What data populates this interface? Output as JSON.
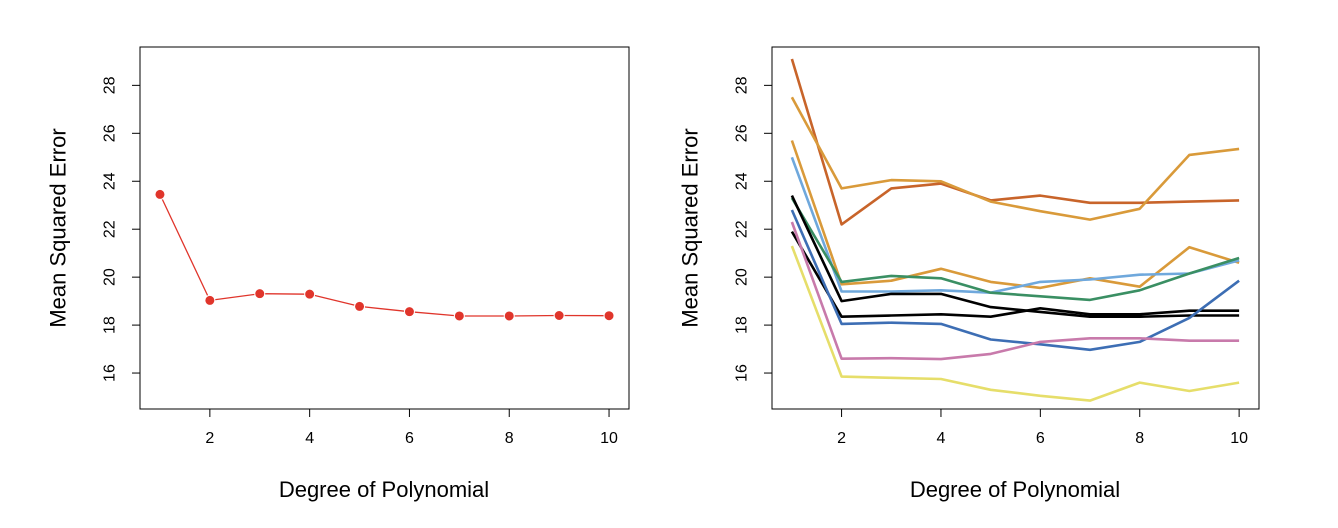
{
  "chart_data": [
    {
      "type": "line",
      "title": "",
      "xlabel": "Degree of Polynomial",
      "ylabel": "Mean Squared Error",
      "xlim": [
        0.6,
        10.4
      ],
      "ylim": [
        14.5,
        29.6
      ],
      "xticks": [
        2,
        4,
        6,
        8,
        10
      ],
      "yticks": [
        16,
        18,
        20,
        22,
        24,
        26,
        28
      ],
      "grid": false,
      "markers": true,
      "series": [
        {
          "color": "#e0352b",
          "x": [
            1,
            2,
            3,
            4,
            5,
            6,
            7,
            8,
            9,
            10
          ],
          "y": [
            23.45,
            19.03,
            19.31,
            19.29,
            18.78,
            18.56,
            18.38,
            18.38,
            18.4,
            18.39
          ]
        }
      ]
    },
    {
      "type": "line",
      "title": "",
      "xlabel": "Degree of Polynomial",
      "ylabel": "Mean Squared Error",
      "xlim": [
        0.6,
        10.4
      ],
      "ylim": [
        14.5,
        29.6
      ],
      "xticks": [
        2,
        4,
        6,
        8,
        10
      ],
      "yticks": [
        16,
        18,
        20,
        22,
        24,
        26,
        28
      ],
      "grid": false,
      "markers": false,
      "series": [
        {
          "color": "#c8642a",
          "x": [
            1,
            2,
            3,
            4,
            5,
            6,
            7,
            8,
            9,
            10
          ],
          "y": [
            29.1,
            22.2,
            23.7,
            23.9,
            23.2,
            23.4,
            23.1,
            23.1,
            23.15,
            23.2
          ]
        },
        {
          "color": "#d99a3a",
          "x": [
            1,
            2,
            3,
            4,
            5,
            6,
            7,
            8,
            9,
            10
          ],
          "y": [
            27.5,
            23.7,
            24.05,
            24.0,
            23.15,
            22.75,
            22.4,
            22.85,
            25.1,
            25.35
          ]
        },
        {
          "color": "#d99a3a",
          "x": [
            1,
            2,
            3,
            4,
            5,
            6,
            7,
            8,
            9,
            10
          ],
          "y": [
            25.7,
            19.7,
            19.85,
            20.35,
            19.8,
            19.55,
            19.95,
            19.6,
            21.25,
            20.6
          ]
        },
        {
          "color": "#6fa8dc",
          "x": [
            1,
            2,
            3,
            4,
            5,
            6,
            7,
            8,
            9,
            10
          ],
          "y": [
            25.0,
            19.4,
            19.4,
            19.45,
            19.35,
            19.8,
            19.9,
            20.1,
            20.15,
            20.7
          ]
        },
        {
          "color": "#3a8f63",
          "x": [
            1,
            2,
            3,
            4,
            5,
            6,
            7,
            8,
            9,
            10
          ],
          "y": [
            23.3,
            19.8,
            20.05,
            19.95,
            19.35,
            19.2,
            19.05,
            19.45,
            20.15,
            20.8
          ]
        },
        {
          "color": "#000000",
          "x": [
            1,
            2,
            3,
            4,
            5,
            6,
            7,
            8,
            9,
            10
          ],
          "y": [
            23.4,
            19.0,
            19.3,
            19.3,
            18.75,
            18.55,
            18.35,
            18.35,
            18.4,
            18.4
          ]
        },
        {
          "color": "#000000",
          "x": [
            1,
            2,
            3,
            4,
            5,
            6,
            7,
            8,
            9,
            10
          ],
          "y": [
            21.9,
            18.35,
            18.4,
            18.45,
            18.35,
            18.7,
            18.45,
            18.45,
            18.6,
            18.6
          ]
        },
        {
          "color": "#3d6eb4",
          "x": [
            1,
            2,
            3,
            4,
            5,
            6,
            7,
            8,
            9,
            10
          ],
          "y": [
            22.8,
            18.05,
            18.1,
            18.05,
            17.4,
            17.2,
            16.97,
            17.3,
            18.3,
            19.85
          ]
        },
        {
          "color": "#c87aab",
          "x": [
            1,
            2,
            3,
            4,
            5,
            6,
            7,
            8,
            9,
            10
          ],
          "y": [
            22.3,
            16.6,
            16.62,
            16.58,
            16.8,
            17.3,
            17.45,
            17.45,
            17.35,
            17.35
          ]
        },
        {
          "color": "#e6de6a",
          "x": [
            1,
            2,
            3,
            4,
            5,
            6,
            7,
            8,
            9,
            10
          ],
          "y": [
            21.3,
            15.85,
            15.8,
            15.75,
            15.3,
            15.05,
            14.85,
            15.6,
            15.25,
            15.6
          ]
        }
      ]
    }
  ]
}
